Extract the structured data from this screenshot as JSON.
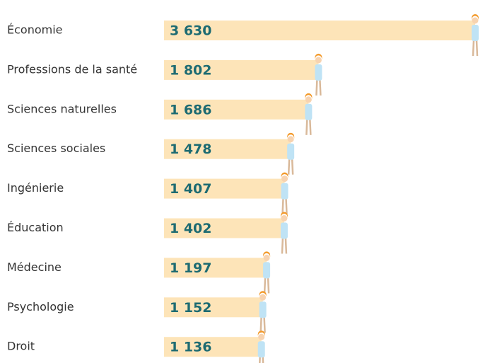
{
  "chart_data": {
    "type": "bar",
    "orientation": "horizontal",
    "categories": [
      "Économie",
      "Professions de la santé",
      "Sciences naturelles",
      "Sciences sociales",
      "Ingénierie",
      "Éducation",
      "Médecine",
      "Psychologie",
      "Droit"
    ],
    "values": [
      3630,
      1802,
      1686,
      1478,
      1407,
      1402,
      1197,
      1152,
      1136
    ],
    "value_labels": [
      "3 630",
      "1 802",
      "1 686",
      "1 478",
      "1 407",
      "1 402",
      "1 197",
      "1 152",
      "1 136"
    ],
    "color": "#fde4b8",
    "label_color": "#1d6b72"
  }
}
